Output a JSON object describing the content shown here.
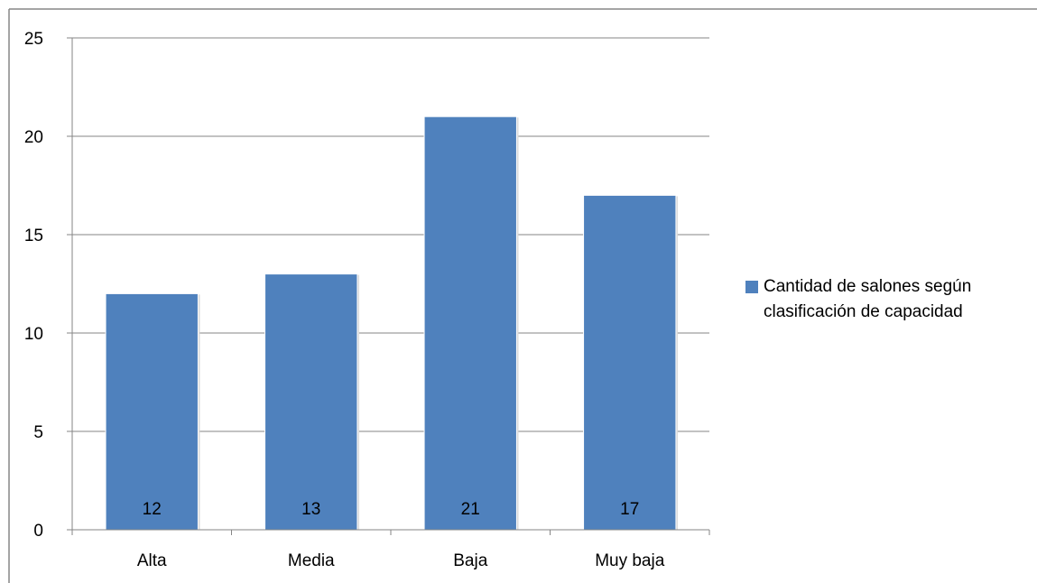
{
  "chart_data": {
    "type": "bar",
    "categories": [
      "Alta",
      "Media",
      "Baja",
      "Muy baja"
    ],
    "series": [
      {
        "name": "Cantidad de salones según clasificación de capacidad",
        "values": [
          12,
          13,
          21,
          17
        ],
        "color": "#4F81BD"
      }
    ],
    "data_labels": [
      "12",
      "13",
      "21",
      "17"
    ],
    "ylim": [
      0,
      25
    ],
    "yticks": [
      0,
      5,
      10,
      15,
      20,
      25
    ],
    "ytick_labels": [
      "0",
      "5",
      "10",
      "15",
      "20",
      "25"
    ],
    "grid": true,
    "legend_position": "right",
    "title": "",
    "xlabel": "",
    "ylabel": ""
  },
  "legend": {
    "label": "Cantidad de salones según clasificación de capacidad"
  },
  "colors": {
    "bar": "#4F81BD",
    "grid": "#868686",
    "axis": "#868686",
    "frame": "#868686"
  }
}
